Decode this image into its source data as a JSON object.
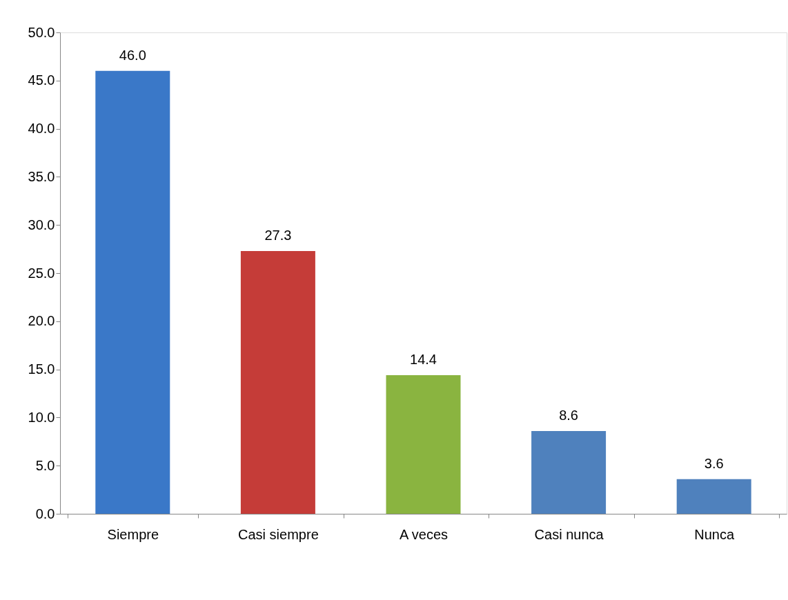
{
  "chart_data": {
    "type": "bar",
    "categories": [
      "Siempre",
      "Casi siempre",
      "A veces",
      "Casi nunca",
      "Nunca"
    ],
    "values": [
      46.0,
      27.3,
      14.4,
      8.6,
      3.6
    ],
    "colors": [
      "#3a78c8",
      "#c53c38",
      "#8ab440",
      "#4f81bd",
      "#4f81bd"
    ],
    "ylim": [
      0,
      50
    ],
    "yticks": [
      {
        "value": 0,
        "label": "0.0"
      },
      {
        "value": 5,
        "label": "5.0"
      },
      {
        "value": 10,
        "label": "10.0"
      },
      {
        "value": 15,
        "label": "15.0"
      },
      {
        "value": 20,
        "label": "20.0"
      },
      {
        "value": 25,
        "label": "25.0"
      },
      {
        "value": 30,
        "label": "30.0"
      },
      {
        "value": 35,
        "label": "35.0"
      },
      {
        "value": 40,
        "label": "40.0"
      },
      {
        "value": 45,
        "label": "45.0"
      },
      {
        "value": 50,
        "label": "50.0"
      }
    ],
    "value_labels": [
      "46.0",
      "27.3",
      "14.4",
      "8.6",
      "3.6"
    ],
    "grid": false
  }
}
